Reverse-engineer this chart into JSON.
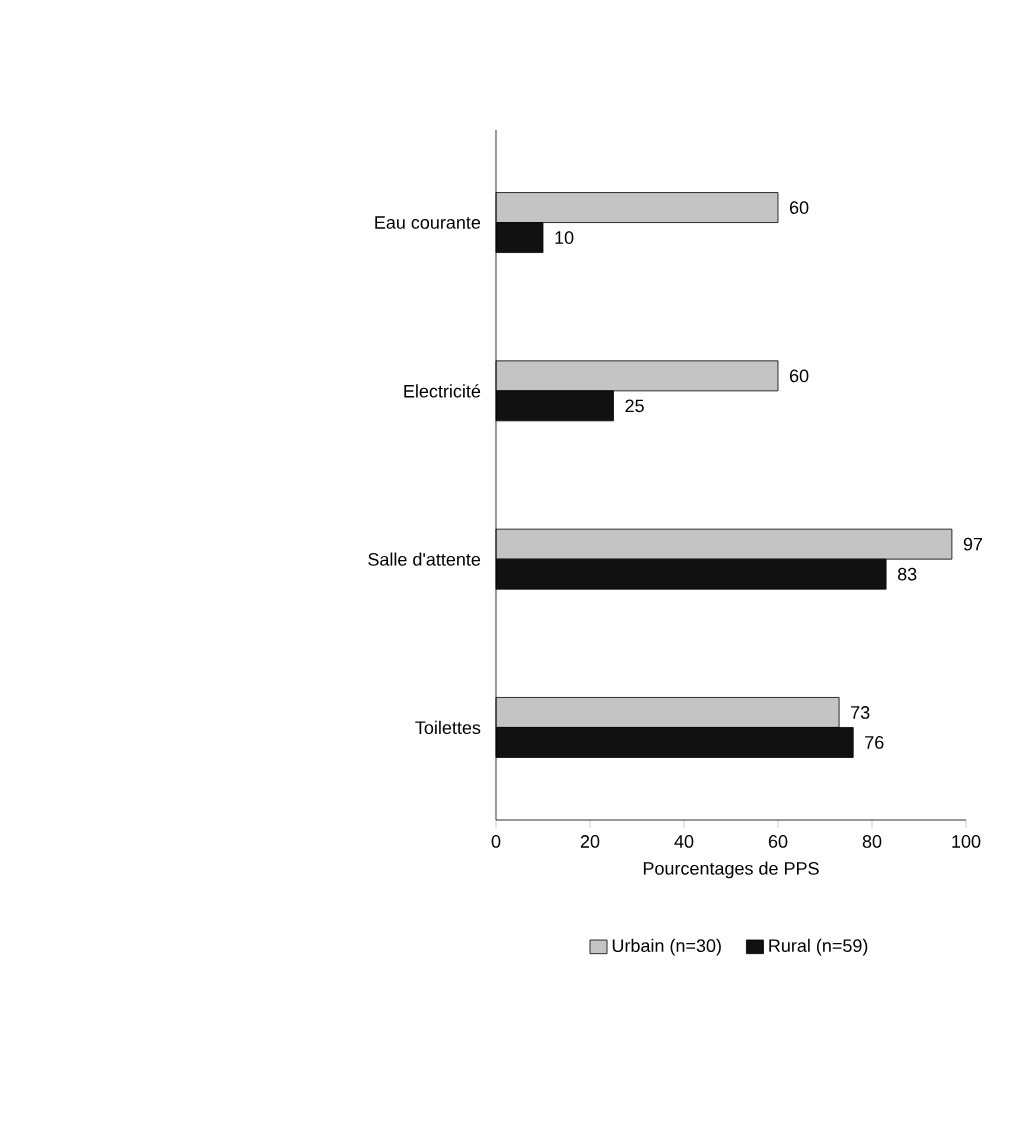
{
  "chart_data": {
    "type": "bar",
    "orientation": "horizontal",
    "categories": [
      "Eau courante",
      "Electricité",
      "Salle d'attente",
      "Toilettes"
    ],
    "series": [
      {
        "name": "Urbain (n=30)",
        "color": "#c4c4c4",
        "values": [
          60,
          60,
          97,
          73
        ]
      },
      {
        "name": "Rural (n=59)",
        "color": "#111111",
        "values": [
          10,
          25,
          83,
          76
        ]
      }
    ],
    "xlim": [
      0,
      100
    ],
    "xticks": [
      0,
      20,
      40,
      60,
      80,
      100
    ],
    "xlabel": "Pourcentages de PPS",
    "data_labels": true,
    "legend": "bottom",
    "grid": false
  }
}
